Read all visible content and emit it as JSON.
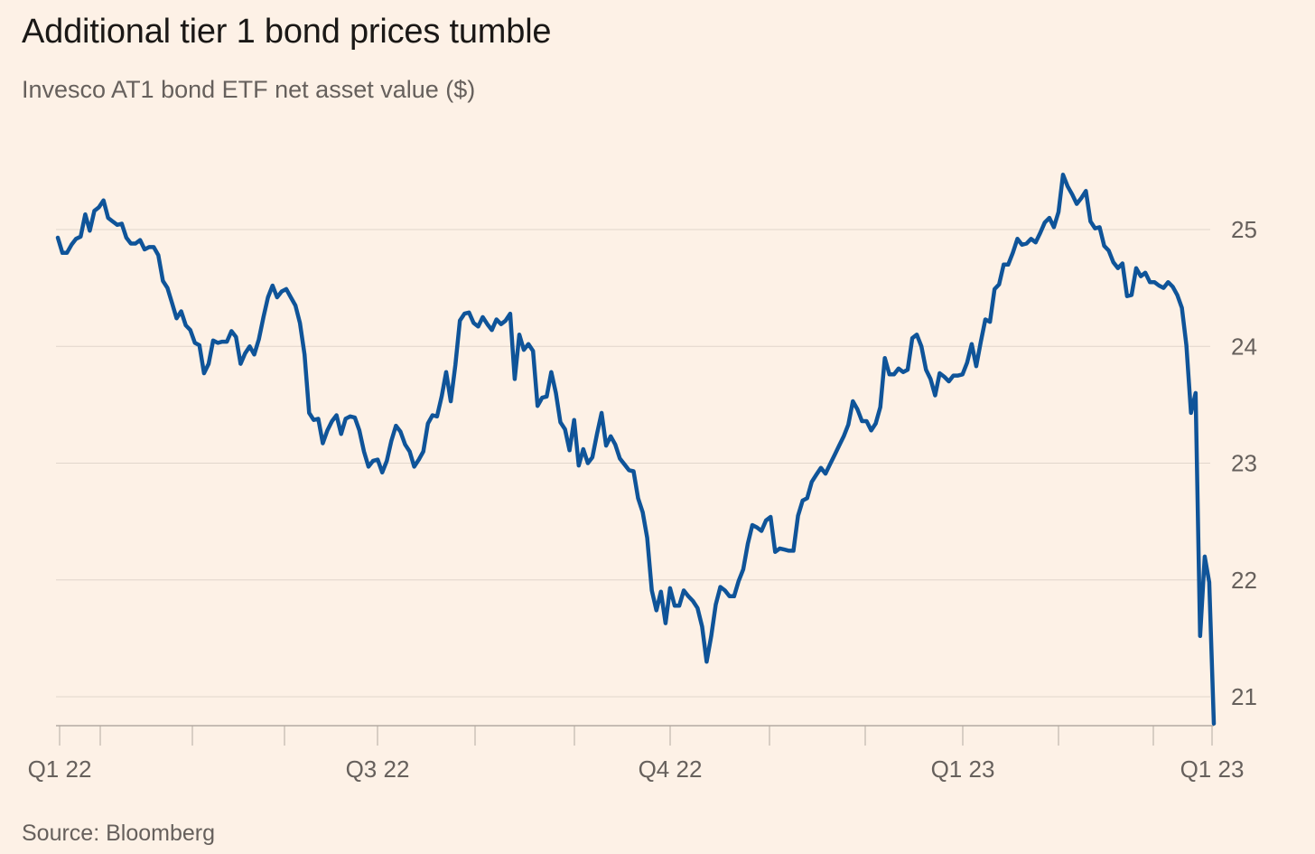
{
  "chart_data": {
    "type": "line",
    "title": "Additional tier 1 bond prices tumble",
    "subtitle": "Invesco AT1 bond ETF net asset value ($)",
    "source": "Source: Bloomberg",
    "xlabel": "",
    "ylabel": "",
    "x_ticks": [
      "Q1 22",
      "Q3 22",
      "Q4 22",
      "Q1 23",
      "Q1 23"
    ],
    "y_ticks": [
      25,
      24,
      23,
      22,
      21
    ],
    "ylim": [
      20.75,
      25.55
    ],
    "grid": "horizontal",
    "y_axis_side": "right",
    "series": [
      {
        "color": "#0f5499",
        "values": [
          24.93,
          24.8,
          24.8,
          24.87,
          24.92,
          24.94,
          25.13,
          24.99,
          25.16,
          25.19,
          25.25,
          25.1,
          25.07,
          25.04,
          25.05,
          24.93,
          24.88,
          24.88,
          24.91,
          24.83,
          24.85,
          24.85,
          24.78,
          24.56,
          24.5,
          24.37,
          24.24,
          24.3,
          24.18,
          24.14,
          24.03,
          24.01,
          23.77,
          23.85,
          24.05,
          24.03,
          24.04,
          24.04,
          24.13,
          24.08,
          23.85,
          23.94,
          24.0,
          23.93,
          24.06,
          24.25,
          24.42,
          24.52,
          24.42,
          24.47,
          24.49,
          24.42,
          24.35,
          24.2,
          23.93,
          23.43,
          23.37,
          23.38,
          23.17,
          23.28,
          23.36,
          23.41,
          23.25,
          23.38,
          23.4,
          23.39,
          23.28,
          23.1,
          22.97,
          23.02,
          23.03,
          22.92,
          23.02,
          23.19,
          23.32,
          23.27,
          23.16,
          23.1,
          22.97,
          23.03,
          23.1,
          23.34,
          23.41,
          23.4,
          23.57,
          23.78,
          23.53,
          23.84,
          24.22,
          24.28,
          24.29,
          24.2,
          24.17,
          24.25,
          24.19,
          24.14,
          24.23,
          24.19,
          24.22,
          24.28,
          23.72,
          24.1,
          23.97,
          24.02,
          23.96,
          23.49,
          23.56,
          23.57,
          23.78,
          23.6,
          23.35,
          23.29,
          23.11,
          23.37,
          22.98,
          23.12,
          23.0,
          23.05,
          23.25,
          23.43,
          23.15,
          23.23,
          23.16,
          23.04,
          22.99,
          22.94,
          22.93,
          22.7,
          22.58,
          22.36,
          21.91,
          21.74,
          21.9,
          21.63,
          21.93,
          21.78,
          21.78,
          21.91,
          21.86,
          21.82,
          21.76,
          21.6,
          21.3,
          21.52,
          21.79,
          21.94,
          21.91,
          21.86,
          21.86,
          21.99,
          22.09,
          22.31,
          22.47,
          22.45,
          22.42,
          22.51,
          22.54,
          22.24,
          22.27,
          22.26,
          22.25,
          22.25,
          22.55,
          22.68,
          22.7,
          22.84,
          22.9,
          22.96,
          22.91,
          22.99,
          23.07,
          23.15,
          23.23,
          23.33,
          23.53,
          23.46,
          23.36,
          23.36,
          23.28,
          23.34,
          23.48,
          23.9,
          23.76,
          23.76,
          23.81,
          23.78,
          23.8,
          24.07,
          24.1,
          24.0,
          23.8,
          23.72,
          23.58,
          23.77,
          23.74,
          23.7,
          23.75,
          23.75,
          23.76,
          23.86,
          24.02,
          23.83,
          24.04,
          24.23,
          24.21,
          24.49,
          24.53,
          24.7,
          24.7,
          24.8,
          24.92,
          24.87,
          24.88,
          24.92,
          24.89,
          24.97,
          25.06,
          25.1,
          25.02,
          25.15,
          25.47,
          25.37,
          25.3,
          25.22,
          25.27,
          25.33,
          25.07,
          25.01,
          25.02,
          24.86,
          24.82,
          24.72,
          24.67,
          24.71,
          24.43,
          24.44,
          24.67,
          24.6,
          24.63,
          24.55,
          24.55,
          24.52,
          24.5,
          24.55,
          24.51,
          24.44,
          24.33,
          24.01,
          23.43,
          23.6,
          21.52,
          22.2,
          21.98,
          20.77
        ]
      }
    ]
  }
}
